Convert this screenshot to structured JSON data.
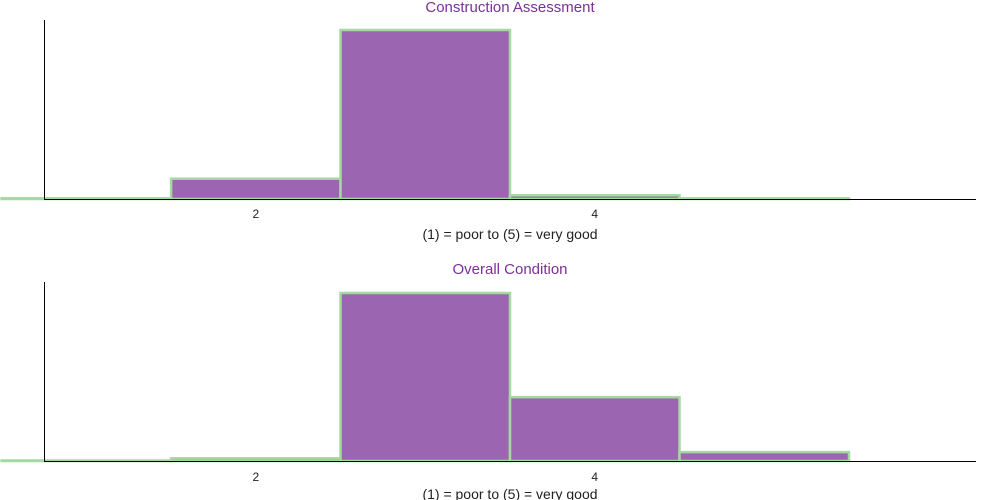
{
  "colors": {
    "bar_fill": "#9b65b1",
    "bar_edge": "#a6d9a2",
    "title": "#7b2f9a",
    "axis": "#000000"
  },
  "chart_data": [
    {
      "type": "bar",
      "title": "Construction Assessment",
      "xlabel": "(1) = poor to (5) = very good",
      "ylabel": "",
      "categories": [
        1,
        2,
        3,
        4,
        5
      ],
      "values": [
        0.004,
        0.12,
        1.0,
        0.022,
        0.004
      ],
      "xticks": [
        2,
        4
      ],
      "xlim": [
        0.75,
        6.25
      ],
      "ylim": [
        0,
        1.0
      ],
      "grid": false,
      "legend": "none"
    },
    {
      "type": "bar",
      "title": "Overall Condition",
      "xlabel": "(1) = poor to (5) = very good",
      "ylabel": "",
      "categories": [
        1,
        2,
        3,
        4,
        5
      ],
      "values": [
        0.003,
        0.016,
        1.0,
        0.38,
        0.053
      ],
      "xticks": [
        2,
        4
      ],
      "xlim": [
        0.75,
        6.25
      ],
      "ylim": [
        0,
        1.0
      ],
      "grid": false,
      "legend": "none"
    }
  ]
}
